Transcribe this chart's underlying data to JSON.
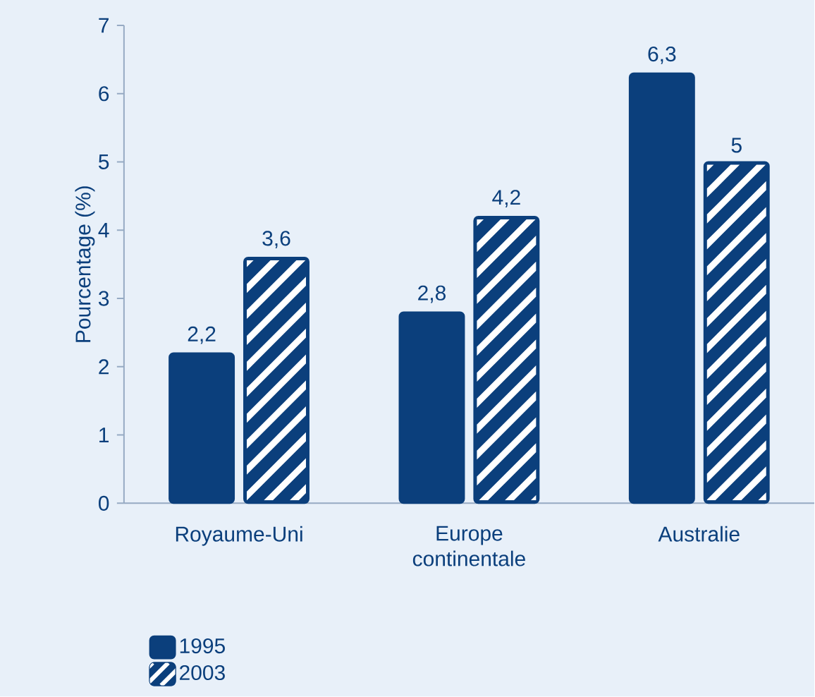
{
  "chart_data": {
    "type": "bar",
    "ylabel": "Pourcentage (%)",
    "categories": [
      "Royaume-Uni",
      "Europe continentale",
      "Australie"
    ],
    "series": [
      {
        "name": "1995",
        "color": "#0b3f7c",
        "values": [
          2.2,
          2.8,
          6.3
        ],
        "value_labels": [
          "2,2",
          "2,8",
          "6,3"
        ]
      },
      {
        "name": "2003",
        "color": "#0b3f7c",
        "values": [
          3.6,
          4.2,
          5
        ],
        "value_labels": [
          "3,6",
          "4,2",
          "5"
        ]
      }
    ],
    "ylim": [
      0,
      7
    ],
    "yticks": [
      0,
      1,
      2,
      3,
      4,
      5,
      6,
      7
    ],
    "legend": "bottom left"
  }
}
